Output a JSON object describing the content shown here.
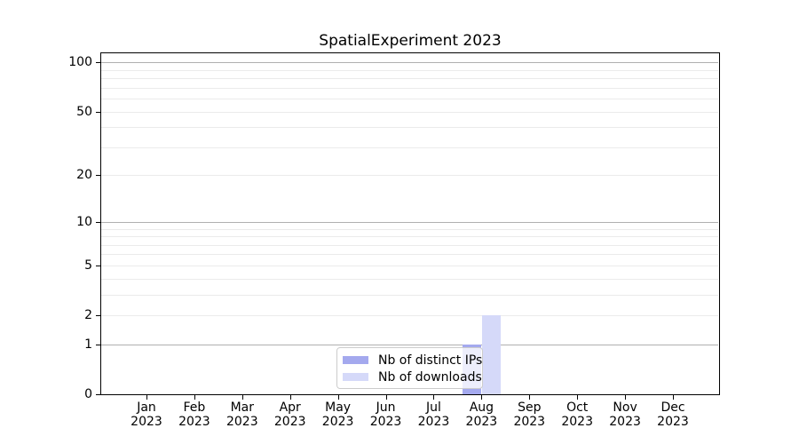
{
  "chart_data": {
    "type": "bar",
    "title": "SpatialExperiment 2023",
    "categories": [
      "Jan 2023",
      "Feb 2023",
      "Mar 2023",
      "Apr 2023",
      "May 2023",
      "Jun 2023",
      "Jul 2023",
      "Aug 2023",
      "Sep 2023",
      "Oct 2023",
      "Nov 2023",
      "Dec 2023"
    ],
    "series": [
      {
        "name": "Nb of distinct IPs",
        "color": "#a4a9ee",
        "values": [
          0,
          0,
          0,
          0,
          0,
          0,
          0,
          1,
          0,
          0,
          0,
          0
        ]
      },
      {
        "name": "Nb of downloads",
        "color": "#d5d9f9",
        "values": [
          0,
          0,
          0,
          0,
          0,
          0,
          0,
          2,
          0,
          0,
          0,
          0
        ]
      }
    ],
    "xlabel": "",
    "ylabel": "",
    "yscale": "log1p",
    "ylim": [
      0,
      115
    ],
    "yticks": [
      0,
      1,
      2,
      5,
      10,
      20,
      50,
      100
    ],
    "grid": {
      "major_lines": [
        1,
        10,
        100
      ],
      "minor_lines": [
        2,
        3,
        4,
        5,
        6,
        7,
        8,
        9,
        20,
        30,
        40,
        50,
        60,
        70,
        80,
        90
      ],
      "major_color": "#b0b0b0",
      "minor_color": "#ebebeb"
    },
    "legend": {
      "position": "lower center"
    },
    "axis_color": "#000000",
    "background_color": "#ffffff"
  }
}
